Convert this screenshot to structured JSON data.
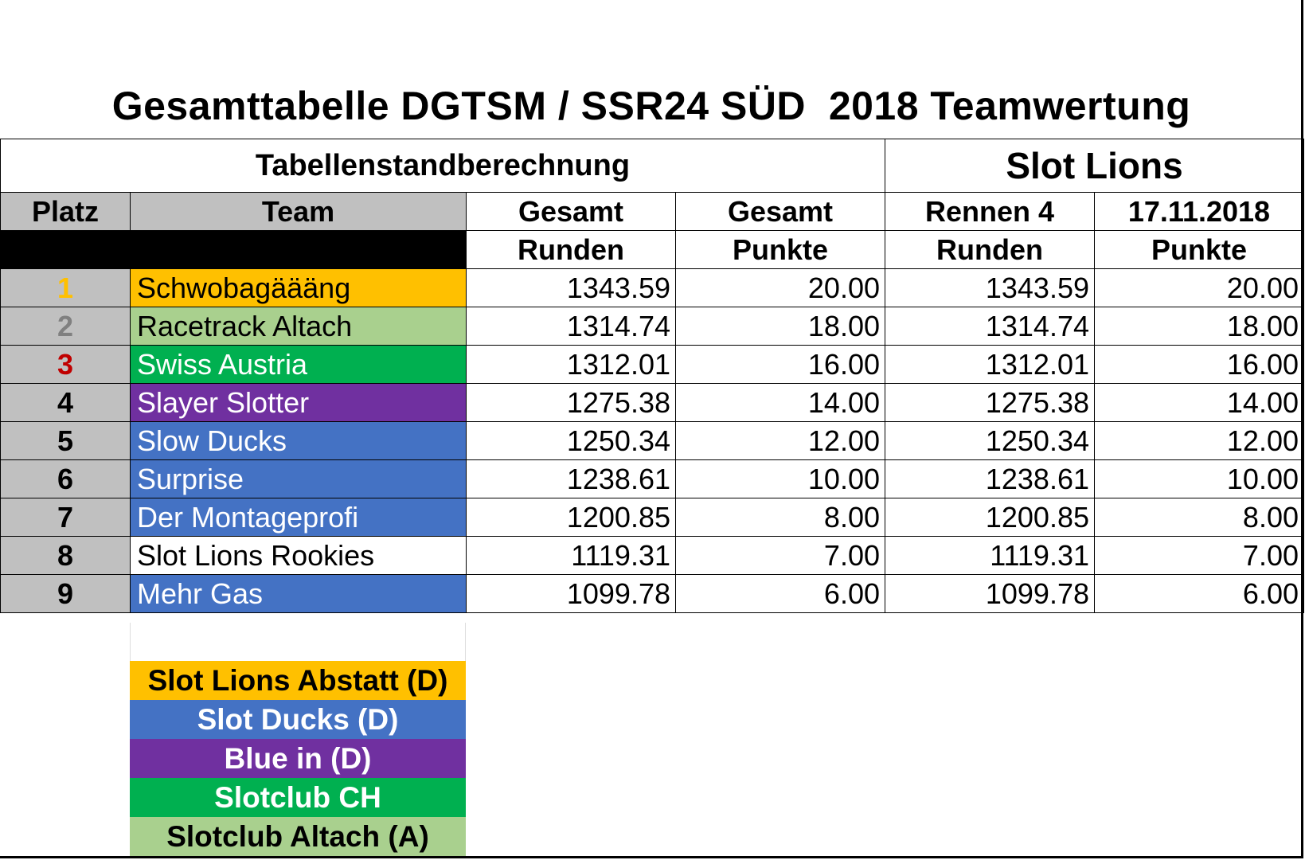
{
  "title": "Gesamttabelle DGTSM / SSR24 SÜD  2018 Teamwertung",
  "section": {
    "left": "Tabellenstandberechnung",
    "right": "Slot Lions"
  },
  "headers": {
    "row1": [
      "Platz",
      "Team",
      "Gesamt",
      "Gesamt",
      "Rennen 4",
      "17.11.2018"
    ],
    "row2": [
      "",
      "",
      "Runden",
      "Punkte",
      "Runden",
      "Punkte"
    ]
  },
  "rows": [
    {
      "platz": "1",
      "team": "Schwobagäääng",
      "gesamt_runden": "1343.59",
      "gesamt_punkte": "20.00",
      "rennen_runden": "1343.59",
      "rennen_punkte": "20.00",
      "team_bg": "#ffc000",
      "team_fg": "#000000",
      "platz_fg": "#ffc000"
    },
    {
      "platz": "2",
      "team": "Racetrack Altach",
      "gesamt_runden": "1314.74",
      "gesamt_punkte": "18.00",
      "rennen_runden": "1314.74",
      "rennen_punkte": "18.00",
      "team_bg": "#a9d08e",
      "team_fg": "#000000",
      "platz_fg": "#808080"
    },
    {
      "platz": "3",
      "team": "Swiss Austria",
      "gesamt_runden": "1312.01",
      "gesamt_punkte": "16.00",
      "rennen_runden": "1312.01",
      "rennen_punkte": "16.00",
      "team_bg": "#00b050",
      "team_fg": "#ffffff",
      "platz_fg": "#c00000"
    },
    {
      "platz": "4",
      "team": "Slayer Slotter",
      "gesamt_runden": "1275.38",
      "gesamt_punkte": "14.00",
      "rennen_runden": "1275.38",
      "rennen_punkte": "14.00",
      "team_bg": "#7030a0",
      "team_fg": "#ffffff",
      "platz_fg": "#000000"
    },
    {
      "platz": "5",
      "team": "Slow Ducks",
      "gesamt_runden": "1250.34",
      "gesamt_punkte": "12.00",
      "rennen_runden": "1250.34",
      "rennen_punkte": "12.00",
      "team_bg": "#4472c4",
      "team_fg": "#ffffff",
      "platz_fg": "#000000"
    },
    {
      "platz": "6",
      "team": "Surprise",
      "gesamt_runden": "1238.61",
      "gesamt_punkte": "10.00",
      "rennen_runden": "1238.61",
      "rennen_punkte": "10.00",
      "team_bg": "#4472c4",
      "team_fg": "#ffffff",
      "platz_fg": "#000000"
    },
    {
      "platz": "7",
      "team": "Der Montageprofi",
      "gesamt_runden": "1200.85",
      "gesamt_punkte": "8.00",
      "rennen_runden": "1200.85",
      "rennen_punkte": "8.00",
      "team_bg": "#4472c4",
      "team_fg": "#ffffff",
      "platz_fg": "#000000"
    },
    {
      "platz": "8",
      "team": "Slot Lions Rookies",
      "gesamt_runden": "1119.31",
      "gesamt_punkte": "7.00",
      "rennen_runden": "1119.31",
      "rennen_punkte": "7.00",
      "team_bg": "#ffffff",
      "team_fg": "#000000",
      "platz_fg": "#000000"
    },
    {
      "platz": "9",
      "team": "Mehr Gas",
      "gesamt_runden": "1099.78",
      "gesamt_punkte": "6.00",
      "rennen_runden": "1099.78",
      "rennen_punkte": "6.00",
      "team_bg": "#4472c4",
      "team_fg": "#ffffff",
      "platz_fg": "#000000"
    }
  ],
  "legend": [
    {
      "label": "Slot Lions Abstatt (D)",
      "bg": "#ffc000",
      "fg": "#000000"
    },
    {
      "label": "Slot Ducks (D)",
      "bg": "#4472c4",
      "fg": "#ffffff"
    },
    {
      "label": "Blue in (D)",
      "bg": "#7030a0",
      "fg": "#ffffff"
    },
    {
      "label": "Slotclub CH",
      "bg": "#00b050",
      "fg": "#ffffff"
    },
    {
      "label": "Slotclub Altach (A)",
      "bg": "#a9d08e",
      "fg": "#000000"
    }
  ]
}
